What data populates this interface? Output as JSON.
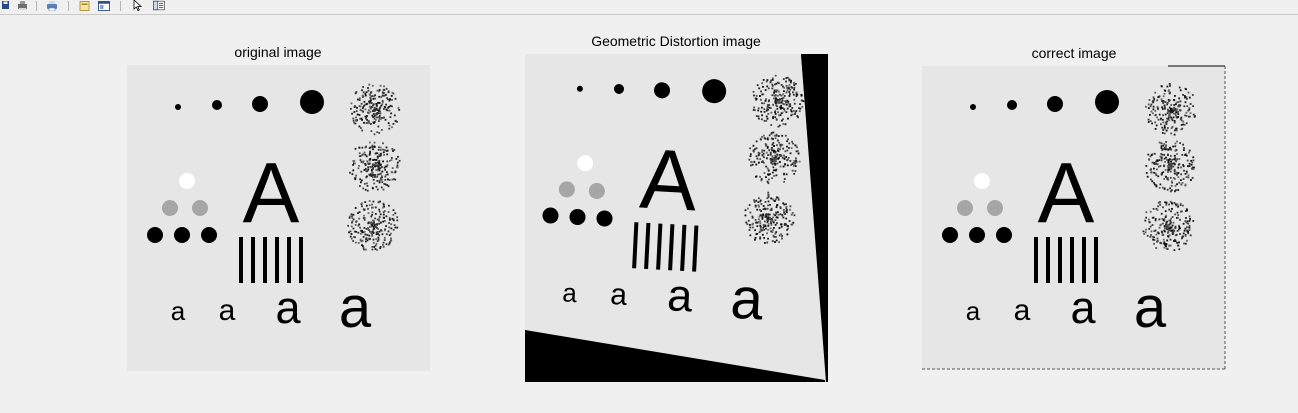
{
  "toolbar": {
    "buttons": [
      {
        "name": "save-icon"
      },
      {
        "name": "print-preview-icon"
      },
      {
        "name": "print-icon"
      },
      {
        "name": "new-figure-icon"
      },
      {
        "name": "new-window-icon"
      },
      {
        "name": "pointer-icon"
      },
      {
        "name": "property-editor-icon"
      }
    ]
  },
  "figures": [
    {
      "title": "original image"
    },
    {
      "title": "Geometric Distortion image"
    },
    {
      "title": "correct image"
    }
  ],
  "test_pattern": {
    "letters": [
      "a",
      "a",
      "a",
      "a",
      "A"
    ]
  }
}
